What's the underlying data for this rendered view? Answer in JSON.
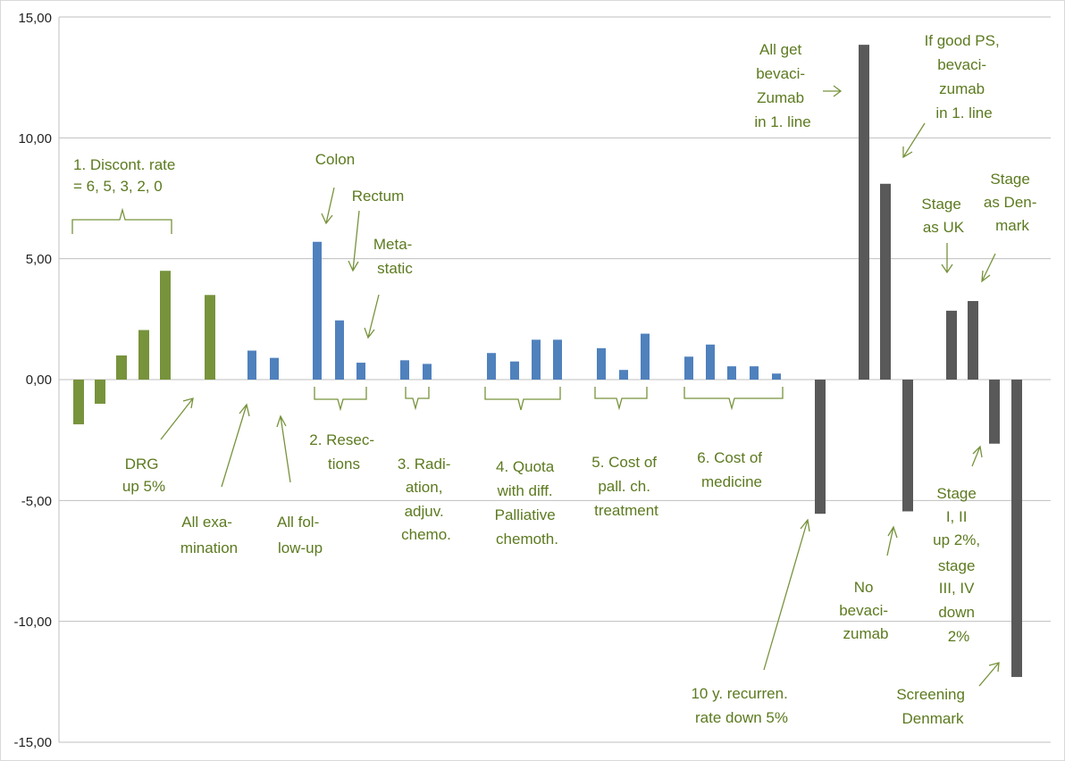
{
  "chart_data": {
    "type": "bar",
    "title": "",
    "xlabel": "",
    "ylabel": "",
    "ylim": [
      -15,
      15
    ],
    "y_ticks": [
      "15,00",
      "10,00",
      "5,00",
      "0,00",
      "-5,00",
      "-10,00",
      "-15,00"
    ],
    "grid": true,
    "legend": "none",
    "colors": {
      "green": "#77933c",
      "blue": "#4f81bd",
      "dark": "#595959",
      "annotation": "#5c7a1f",
      "grid": "#bfbfbf"
    },
    "bars": [
      {
        "group": "1",
        "value": -1.85,
        "color": "green"
      },
      {
        "group": "1",
        "value": -1.0,
        "color": "green"
      },
      {
        "group": "1",
        "value": 1.0,
        "color": "green"
      },
      {
        "group": "1",
        "value": 2.05,
        "color": "green"
      },
      {
        "group": "1",
        "value": 4.5,
        "color": "green"
      },
      {
        "group": "DRG",
        "value": 3.5,
        "color": "green"
      },
      {
        "group": "exam",
        "value": 1.2,
        "color": "blue"
      },
      {
        "group": "follow-up",
        "value": 0.9,
        "color": "blue"
      },
      {
        "group": "2",
        "value": 5.7,
        "color": "blue"
      },
      {
        "group": "2",
        "value": 2.45,
        "color": "blue"
      },
      {
        "group": "2",
        "value": 0.7,
        "color": "blue"
      },
      {
        "group": "3",
        "value": 0.8,
        "color": "blue"
      },
      {
        "group": "3",
        "value": 0.65,
        "color": "blue"
      },
      {
        "group": "4",
        "value": 1.1,
        "color": "blue"
      },
      {
        "group": "4",
        "value": 0.75,
        "color": "blue"
      },
      {
        "group": "4",
        "value": 1.65,
        "color": "blue"
      },
      {
        "group": "4",
        "value": 1.65,
        "color": "blue"
      },
      {
        "group": "5",
        "value": 1.3,
        "color": "blue"
      },
      {
        "group": "5",
        "value": 0.4,
        "color": "blue"
      },
      {
        "group": "5",
        "value": 1.9,
        "color": "blue"
      },
      {
        "group": "6",
        "value": 0.95,
        "color": "blue"
      },
      {
        "group": "6",
        "value": 1.45,
        "color": "blue"
      },
      {
        "group": "6",
        "value": 0.55,
        "color": "blue"
      },
      {
        "group": "6",
        "value": 0.55,
        "color": "blue"
      },
      {
        "group": "6",
        "value": 0.25,
        "color": "blue"
      },
      {
        "group": "recurrence",
        "value": -5.55,
        "color": "dark"
      },
      {
        "group": "bevacizumab-all",
        "value": 13.85,
        "color": "dark"
      },
      {
        "group": "bevacizumab-good-ps",
        "value": 8.1,
        "color": "dark"
      },
      {
        "group": "no-bevacizumab",
        "value": -5.45,
        "color": "dark"
      },
      {
        "group": "stage-uk",
        "value": 2.85,
        "color": "dark"
      },
      {
        "group": "stage-denmark",
        "value": 3.25,
        "color": "dark"
      },
      {
        "group": "stage-shift",
        "value": -2.65,
        "color": "dark"
      },
      {
        "group": "screening",
        "value": -12.3,
        "color": "dark"
      }
    ],
    "annotations": {
      "discount": [
        "1. Discont. rate",
        "= 6, 5, 3, 2, 0"
      ],
      "drg": [
        "DRG",
        "up 5%"
      ],
      "exam": [
        "All exa-",
        "mination"
      ],
      "followup": [
        "All fol-",
        "low-up"
      ],
      "colon": [
        "Colon"
      ],
      "rectum": [
        "Rectum"
      ],
      "metastatic": [
        "Meta-",
        "static"
      ],
      "resections": [
        "2. Resec-",
        "tions"
      ],
      "radiation": [
        "3. Radi-",
        "ation,",
        "adjuv.",
        "chemo."
      ],
      "quota": [
        "4. Quota",
        "with diff.",
        "Palliative",
        "chemoth."
      ],
      "cost_pall": [
        "5. Cost of",
        "pall. ch.",
        "treatment"
      ],
      "cost_med": [
        "6. Cost of",
        "medicine"
      ],
      "recurrence": [
        "10 y. recurren.",
        "rate down 5%"
      ],
      "all_bev": [
        "All get",
        "bevaci-",
        "Zumab",
        "in 1. line"
      ],
      "good_ps": [
        "If good PS,",
        "bevaci-",
        "zumab",
        "in 1. line"
      ],
      "no_bev": [
        "No",
        "bevaci-",
        "zumab"
      ],
      "stage_uk": [
        "Stage",
        "as UK"
      ],
      "stage_dk": [
        "Stage",
        "as Den-",
        "mark"
      ],
      "stage_shift": [
        "Stage",
        "I, II",
        "up 2%,",
        "stage",
        "III, IV",
        "down",
        "2%"
      ],
      "screening": [
        "Screening",
        "Denmark"
      ]
    }
  }
}
